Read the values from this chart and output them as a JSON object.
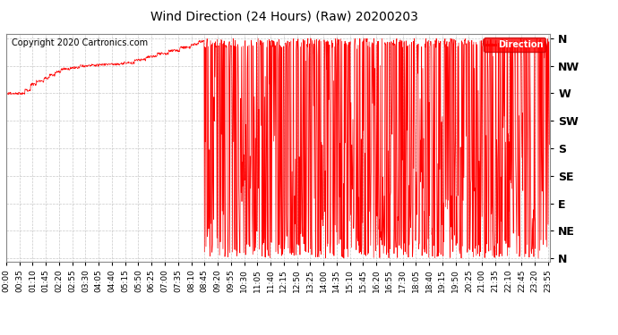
{
  "title": "Wind Direction (24 Hours) (Raw) 20200203",
  "copyright": "Copyright 2020 Cartronics.com",
  "legend_label": "Direction",
  "legend_bg": "#FF0000",
  "legend_text_color": "#FFFFFF",
  "line_color": "#FF0000",
  "bg_color": "#FFFFFF",
  "plot_bg_color": "#FFFFFF",
  "grid_color": "#BBBBBB",
  "ytick_labels": [
    "N",
    "NE",
    "E",
    "SE",
    "S",
    "SW",
    "W",
    "NW",
    "N"
  ],
  "ytick_values": [
    0,
    45,
    90,
    135,
    180,
    225,
    270,
    315,
    360
  ],
  "ylim": [
    -5,
    368
  ],
  "xtick_interval_minutes": 35,
  "title_fontsize": 10,
  "copyright_fontsize": 7,
  "yaxis_label_fontsize": 9,
  "tick_label_fontsize": 6.5
}
